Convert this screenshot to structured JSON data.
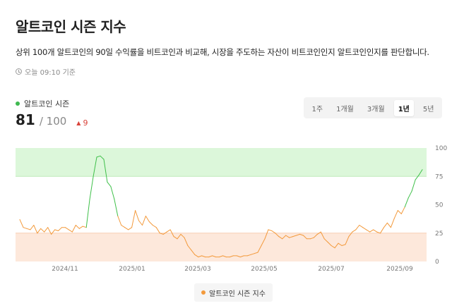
{
  "header": {
    "title": "알트코인 시즌 지수",
    "description": "상위 100개 알트코인의 90일 수익률을 비트코인과 비교해, 시장을 주도하는 자산이 비트코인인지 알트코인인지를 판단합니다.",
    "updated": "오늘 09:10 기준"
  },
  "summary": {
    "label": "알트코인 시즌",
    "value": "81",
    "max": "/ 100",
    "change": "9",
    "dot_color": "#3fb950",
    "change_color": "#d9433a"
  },
  "periods": [
    "1주",
    "1개월",
    "3개월",
    "1년",
    "5년"
  ],
  "active_period": "1년",
  "legend": {
    "series_label": "알트코인 시즌 지수",
    "color": "#f39a3c"
  },
  "colors": {
    "line_low": "#f39a3c",
    "line_high": "#3fc04a",
    "band_high": "#dcf7da",
    "band_low": "#fde8db"
  },
  "chart_data": {
    "type": "line",
    "x_ticks": [
      "2024/11",
      "2025/01",
      "2025/03",
      "2025/05",
      "2025/07",
      "2025/09"
    ],
    "y_ticks": [
      0,
      25,
      50,
      75,
      100
    ],
    "ylim": [
      0,
      100
    ],
    "bands": [
      {
        "from": 75,
        "to": 100,
        "color": "#dcf7da"
      },
      {
        "from": 0,
        "to": 25,
        "color": "#fde8db"
      }
    ],
    "series": [
      {
        "values": [
          37,
          30,
          29,
          28,
          32,
          25,
          29,
          26,
          30,
          24,
          28,
          27,
          30,
          30,
          28,
          26,
          32,
          29,
          31,
          30,
          55,
          75,
          92,
          93,
          90,
          70,
          66,
          55,
          40,
          32,
          30,
          28,
          30,
          45,
          36,
          32,
          40,
          35,
          32,
          30,
          25,
          24,
          26,
          28,
          22,
          20,
          24,
          21,
          14,
          10,
          6,
          4,
          5,
          4,
          4,
          5,
          4,
          4,
          5,
          4,
          4,
          5,
          5,
          4,
          5,
          5,
          6,
          7,
          8,
          14,
          20,
          28,
          27,
          25,
          22,
          20,
          23,
          21,
          22,
          23,
          24,
          23,
          20,
          20,
          21,
          24,
          26,
          20,
          17,
          14,
          12,
          16,
          14,
          15,
          22,
          26,
          28,
          32,
          30,
          28,
          26,
          28,
          26,
          25,
          30,
          34,
          30,
          38,
          45,
          42,
          48,
          56,
          62,
          72,
          76,
          81
        ]
      }
    ]
  }
}
